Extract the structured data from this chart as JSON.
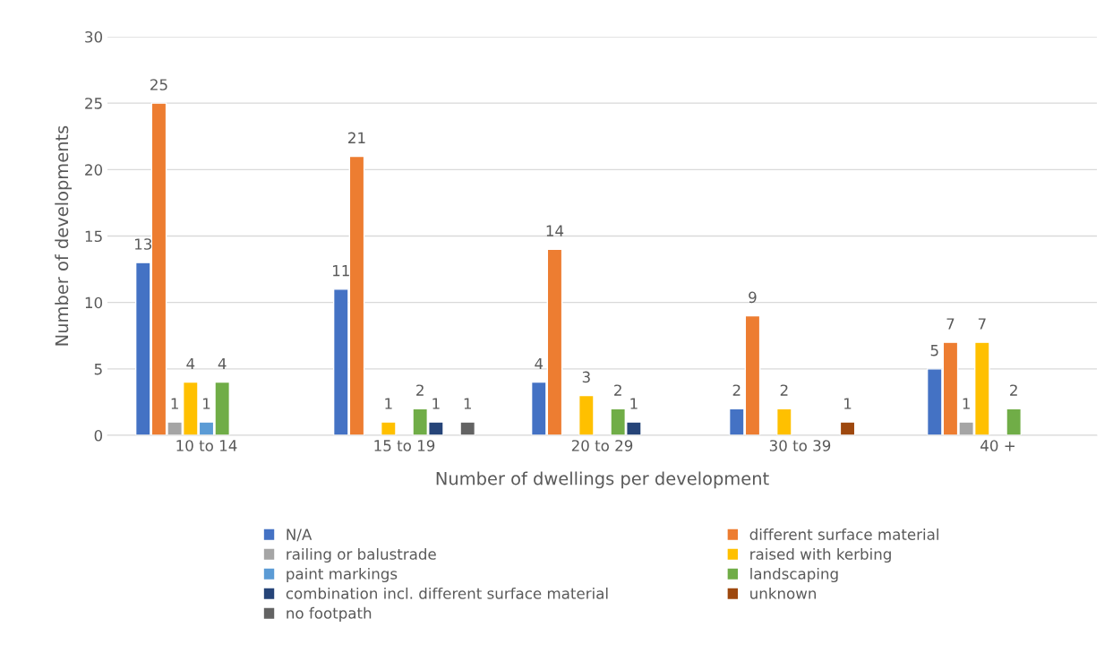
{
  "chart_data": {
    "type": "bar",
    "xlabel": "Number of dwellings per development",
    "ylabel": "Number of developments",
    "categories": [
      "10 to 14",
      "15 to 19",
      "20 to 29",
      "30 to 39",
      "40 +"
    ],
    "series": [
      {
        "name": "N/A",
        "color": "#4472c4",
        "values": [
          13,
          11,
          4,
          2,
          5
        ]
      },
      {
        "name": "different surface material",
        "color": "#ed7d31",
        "values": [
          25,
          21,
          14,
          9,
          7
        ]
      },
      {
        "name": "railing or balustrade",
        "color": "#a5a5a5",
        "values": [
          1,
          null,
          null,
          null,
          1
        ]
      },
      {
        "name": "raised with kerbing",
        "color": "#ffc000",
        "values": [
          4,
          1,
          3,
          2,
          7
        ]
      },
      {
        "name": "paint markings",
        "color": "#5b9bd5",
        "values": [
          1,
          null,
          null,
          null,
          null
        ]
      },
      {
        "name": "landscaping",
        "color": "#70ad47",
        "values": [
          4,
          2,
          2,
          null,
          2
        ]
      },
      {
        "name": "combination incl. different surface material",
        "color": "#264478",
        "values": [
          null,
          1,
          1,
          null,
          null
        ]
      },
      {
        "name": "unknown",
        "color": "#9e480e",
        "values": [
          null,
          null,
          null,
          1,
          null
        ]
      },
      {
        "name": "no footpath",
        "color": "#636363",
        "values": [
          null,
          1,
          null,
          null,
          null
        ]
      }
    ],
    "ylim": [
      0,
      30
    ],
    "yticks": [
      0,
      5,
      10,
      15,
      20,
      25,
      30
    ],
    "grid": "y",
    "legend": "bottom",
    "data_labels": true
  }
}
